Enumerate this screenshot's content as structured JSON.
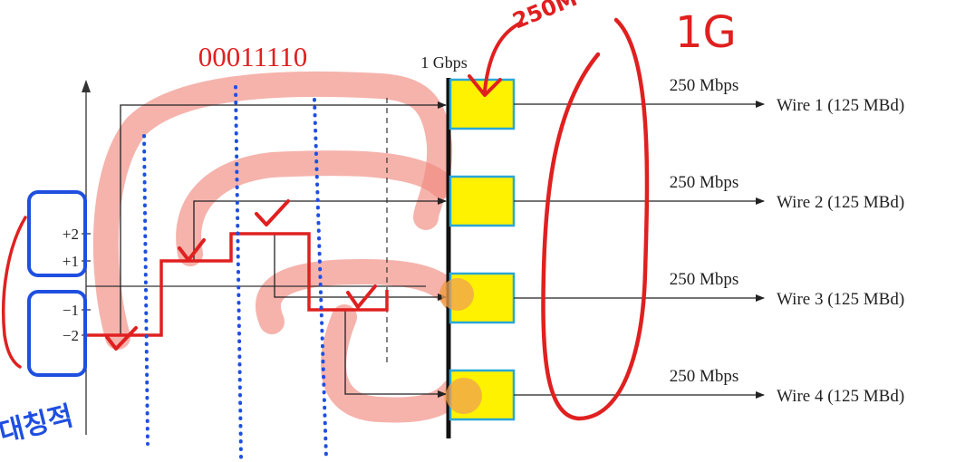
{
  "diagram": {
    "bit_pattern": "00011110",
    "input_rate": "1 Gbps",
    "levels": [
      "+2",
      "+1",
      "−1",
      "−2"
    ],
    "wires": [
      {
        "rate": "250 Mbps",
        "label": "Wire 1 (125 MBd)"
      },
      {
        "rate": "250 Mbps",
        "label": "Wire 2 (125 MBd)"
      },
      {
        "rate": "250 Mbps",
        "label": "Wire 3 (125 MBd)"
      },
      {
        "rate": "250 Mbps",
        "label": "Wire 4 (125 MBd)"
      }
    ]
  },
  "annotations": {
    "handwritten_top": "250M",
    "handwritten_total": "1G",
    "handwritten_korean": "대칭적"
  },
  "colors": {
    "signal": "#e02020",
    "box_fill": "#fff200",
    "box_border": "#2aa7d6",
    "blue_marks": "#1f4fe0",
    "highlight": "#ef8a80",
    "ink": "#222222"
  }
}
